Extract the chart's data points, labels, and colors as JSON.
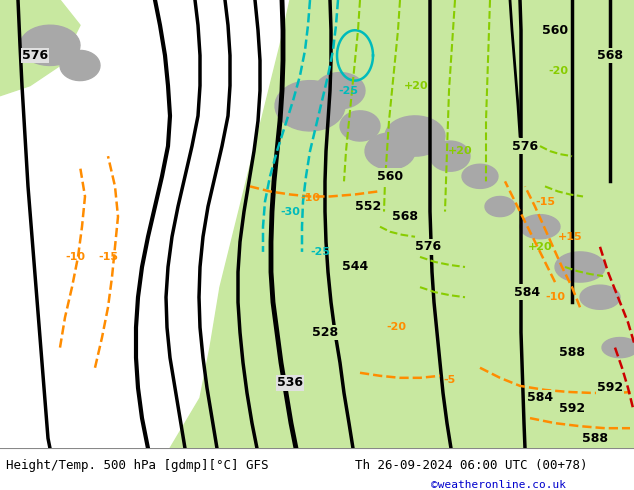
{
  "title_left": "Height/Temp. 500 hPa [gdmp][°C] GFS",
  "title_right": "Th 26-09-2024 06:00 UTC (00+78)",
  "copyright": "©weatheronline.co.uk",
  "ocean_color": "#e0e0e0",
  "land_color": "#c8e8a0",
  "land_color2": "#d8f0b0",
  "gray_color": "#a8a8a8",
  "fig_width": 6.34,
  "fig_height": 4.9,
  "dpi": 100,
  "bottom_bar_color": "#f0f0f0",
  "text_color_black": "#000000",
  "text_color_blue": "#0000cc",
  "font_size_label": 9,
  "font_size_copyright": 8
}
